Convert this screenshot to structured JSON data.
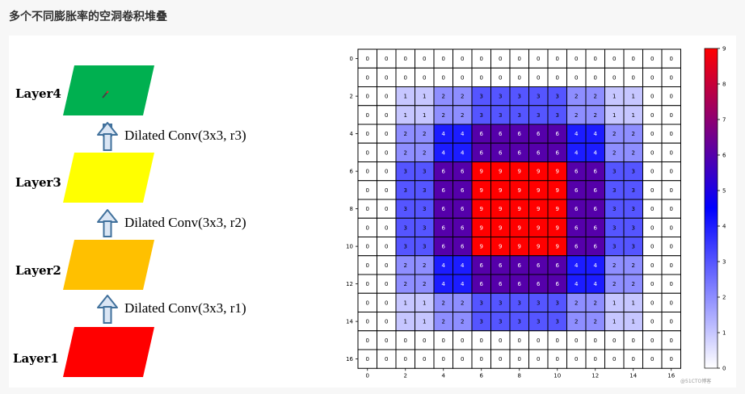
{
  "page_title": "多个不同膨胀率的空洞卷积堆叠",
  "diagram": {
    "layers": [
      {
        "label": "Layer4",
        "color": "#00b050"
      },
      {
        "label": "Layer3",
        "color": "#ffff00"
      },
      {
        "label": "Layer2",
        "color": "#ffc000"
      },
      {
        "label": "Layer1",
        "color": "#ff0000"
      }
    ],
    "convs": [
      {
        "label": "Dilated Conv(3x3, r3)"
      },
      {
        "label": "Dilated Conv(3x3, r2)"
      },
      {
        "label": "Dilated Conv(3x3, r1)"
      }
    ]
  },
  "chart_data": {
    "type": "heatmap",
    "title": "",
    "xlabel": "",
    "ylabel": "",
    "x_ticks": [
      0,
      2,
      4,
      6,
      8,
      10,
      12,
      14,
      16
    ],
    "y_ticks": [
      0,
      2,
      4,
      6,
      8,
      10,
      12,
      14,
      16
    ],
    "colormap": [
      "#ffffff",
      "#0000ff",
      "#ff0000"
    ],
    "vmin": 0,
    "vmax": 9,
    "colorbar_ticks": [
      0,
      1,
      2,
      3,
      4,
      5,
      6,
      7,
      8,
      9
    ],
    "grid": true,
    "values": [
      [
        0,
        0,
        0,
        0,
        0,
        0,
        0,
        0,
        0,
        0,
        0,
        0,
        0,
        0,
        0,
        0,
        0
      ],
      [
        0,
        0,
        0,
        0,
        0,
        0,
        0,
        0,
        0,
        0,
        0,
        0,
        0,
        0,
        0,
        0,
        0
      ],
      [
        0,
        0,
        1,
        1,
        2,
        2,
        3,
        3,
        3,
        3,
        3,
        2,
        2,
        1,
        1,
        0,
        0
      ],
      [
        0,
        0,
        1,
        1,
        2,
        2,
        3,
        3,
        3,
        3,
        3,
        2,
        2,
        1,
        1,
        0,
        0
      ],
      [
        0,
        0,
        2,
        2,
        4,
        4,
        6,
        6,
        6,
        6,
        6,
        4,
        4,
        2,
        2,
        0,
        0
      ],
      [
        0,
        0,
        2,
        2,
        4,
        4,
        6,
        6,
        6,
        6,
        6,
        4,
        4,
        2,
        2,
        0,
        0
      ],
      [
        0,
        0,
        3,
        3,
        6,
        6,
        9,
        9,
        9,
        9,
        9,
        6,
        6,
        3,
        3,
        0,
        0
      ],
      [
        0,
        0,
        3,
        3,
        6,
        6,
        9,
        9,
        9,
        9,
        9,
        6,
        6,
        3,
        3,
        0,
        0
      ],
      [
        0,
        0,
        3,
        3,
        6,
        6,
        9,
        9,
        9,
        9,
        9,
        6,
        6,
        3,
        3,
        0,
        0
      ],
      [
        0,
        0,
        3,
        3,
        6,
        6,
        9,
        9,
        9,
        9,
        9,
        6,
        6,
        3,
        3,
        0,
        0
      ],
      [
        0,
        0,
        3,
        3,
        6,
        6,
        9,
        9,
        9,
        9,
        9,
        6,
        6,
        3,
        3,
        0,
        0
      ],
      [
        0,
        0,
        2,
        2,
        4,
        4,
        6,
        6,
        6,
        6,
        6,
        4,
        4,
        2,
        2,
        0,
        0
      ],
      [
        0,
        0,
        2,
        2,
        4,
        4,
        6,
        6,
        6,
        6,
        6,
        4,
        4,
        2,
        2,
        0,
        0
      ],
      [
        0,
        0,
        1,
        1,
        2,
        2,
        3,
        3,
        3,
        3,
        3,
        2,
        2,
        1,
        1,
        0,
        0
      ],
      [
        0,
        0,
        1,
        1,
        2,
        2,
        3,
        3,
        3,
        3,
        3,
        2,
        2,
        1,
        1,
        0,
        0
      ],
      [
        0,
        0,
        0,
        0,
        0,
        0,
        0,
        0,
        0,
        0,
        0,
        0,
        0,
        0,
        0,
        0,
        0
      ],
      [
        0,
        0,
        0,
        0,
        0,
        0,
        0,
        0,
        0,
        0,
        0,
        0,
        0,
        0,
        0,
        0,
        0
      ]
    ]
  },
  "watermark": "@51CTO博客"
}
